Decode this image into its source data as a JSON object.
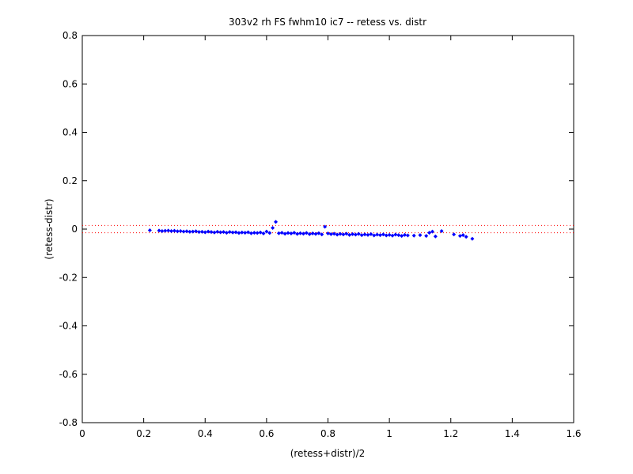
{
  "chart_data": {
    "type": "scatter",
    "title": "303v2 rh FS fwhm10 ic7 -- retess vs. distr",
    "xlabel": "(retess+distr)/2",
    "ylabel": "(retess-distr)",
    "xlim": [
      0,
      1.6
    ],
    "ylim": [
      -0.8,
      0.8
    ],
    "xticks": [
      "0",
      "0.2",
      "0.4",
      "0.6",
      "0.8",
      "1",
      "1.2",
      "1.4",
      "1.6"
    ],
    "yticks": [
      "-0.8",
      "-0.6",
      "-0.4",
      "-0.2",
      "0",
      "0.2",
      "0.4",
      "0.6",
      "0.8"
    ],
    "xtick_values": [
      0,
      0.2,
      0.4,
      0.6,
      0.8,
      1.0,
      1.2,
      1.4,
      1.6
    ],
    "ytick_values": [
      -0.8,
      -0.6,
      -0.4,
      -0.2,
      0,
      0.2,
      0.4,
      0.6,
      0.8
    ],
    "grid": false,
    "marker_color": "#0000ff",
    "limit_line_color": "#ff0000",
    "limit_lines": [
      0.015,
      -0.015
    ],
    "series": [
      {
        "points": [
          [
            0.22,
            -0.005
          ],
          [
            0.25,
            -0.006
          ],
          [
            0.26,
            -0.008
          ],
          [
            0.27,
            -0.007
          ],
          [
            0.28,
            -0.006
          ],
          [
            0.29,
            -0.008
          ],
          [
            0.3,
            -0.007
          ],
          [
            0.31,
            -0.009
          ],
          [
            0.32,
            -0.008
          ],
          [
            0.33,
            -0.01
          ],
          [
            0.34,
            -0.009
          ],
          [
            0.35,
            -0.011
          ],
          [
            0.36,
            -0.01
          ],
          [
            0.37,
            -0.009
          ],
          [
            0.38,
            -0.012
          ],
          [
            0.39,
            -0.011
          ],
          [
            0.4,
            -0.013
          ],
          [
            0.41,
            -0.01
          ],
          [
            0.42,
            -0.012
          ],
          [
            0.43,
            -0.014
          ],
          [
            0.44,
            -0.011
          ],
          [
            0.45,
            -0.013
          ],
          [
            0.46,
            -0.012
          ],
          [
            0.47,
            -0.015
          ],
          [
            0.48,
            -0.012
          ],
          [
            0.49,
            -0.014
          ],
          [
            0.5,
            -0.013
          ],
          [
            0.51,
            -0.016
          ],
          [
            0.52,
            -0.014
          ],
          [
            0.53,
            -0.015
          ],
          [
            0.54,
            -0.013
          ],
          [
            0.55,
            -0.017
          ],
          [
            0.56,
            -0.015
          ],
          [
            0.57,
            -0.016
          ],
          [
            0.58,
            -0.014
          ],
          [
            0.59,
            -0.018
          ],
          [
            0.6,
            -0.01
          ],
          [
            0.61,
            -0.016
          ],
          [
            0.62,
            0.005
          ],
          [
            0.63,
            0.03
          ],
          [
            0.64,
            -0.017
          ],
          [
            0.65,
            -0.015
          ],
          [
            0.66,
            -0.019
          ],
          [
            0.67,
            -0.016
          ],
          [
            0.68,
            -0.018
          ],
          [
            0.69,
            -0.015
          ],
          [
            0.7,
            -0.02
          ],
          [
            0.71,
            -0.017
          ],
          [
            0.72,
            -0.019
          ],
          [
            0.73,
            -0.016
          ],
          [
            0.74,
            -0.021
          ],
          [
            0.75,
            -0.018
          ],
          [
            0.76,
            -0.02
          ],
          [
            0.77,
            -0.017
          ],
          [
            0.78,
            -0.022
          ],
          [
            0.79,
            0.01
          ],
          [
            0.8,
            -0.018
          ],
          [
            0.81,
            -0.021
          ],
          [
            0.82,
            -0.019
          ],
          [
            0.83,
            -0.023
          ],
          [
            0.84,
            -0.02
          ],
          [
            0.85,
            -0.022
          ],
          [
            0.86,
            -0.019
          ],
          [
            0.87,
            -0.024
          ],
          [
            0.88,
            -0.021
          ],
          [
            0.89,
            -0.023
          ],
          [
            0.9,
            -0.02
          ],
          [
            0.91,
            -0.025
          ],
          [
            0.92,
            -0.022
          ],
          [
            0.93,
            -0.024
          ],
          [
            0.94,
            -0.021
          ],
          [
            0.95,
            -0.026
          ],
          [
            0.96,
            -0.023
          ],
          [
            0.97,
            -0.025
          ],
          [
            0.98,
            -0.022
          ],
          [
            0.99,
            -0.026
          ],
          [
            1.0,
            -0.024
          ],
          [
            1.01,
            -0.027
          ],
          [
            1.02,
            -0.023
          ],
          [
            1.03,
            -0.025
          ],
          [
            1.04,
            -0.028
          ],
          [
            1.05,
            -0.024
          ],
          [
            1.06,
            -0.026
          ],
          [
            1.08,
            -0.027
          ],
          [
            1.1,
            -0.025
          ],
          [
            1.12,
            -0.028
          ],
          [
            1.13,
            -0.015
          ],
          [
            1.14,
            -0.01
          ],
          [
            1.15,
            -0.03
          ],
          [
            1.17,
            -0.008
          ],
          [
            1.21,
            -0.022
          ],
          [
            1.23,
            -0.028
          ],
          [
            1.24,
            -0.025
          ],
          [
            1.25,
            -0.032
          ],
          [
            1.27,
            -0.04
          ]
        ]
      }
    ]
  }
}
